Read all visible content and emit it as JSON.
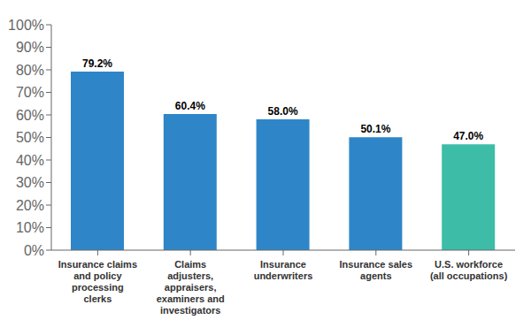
{
  "chart_data": {
    "type": "bar",
    "categories": [
      "Insurance claims\nand policy\nprocessing\nclerks",
      "Claims\nadjusters,\nappraisers,\nexaminers and\ninvestigators",
      "Insurance\nunderwriters",
      "Insurance sales\nagents",
      "U.S. workforce\n(all occupations)"
    ],
    "values": [
      79.2,
      60.4,
      58.0,
      50.1,
      47.0
    ],
    "value_labels": [
      "79.2%",
      "60.4%",
      "58.0%",
      "50.1%",
      "47.0%"
    ],
    "colors": [
      "#2e86c8",
      "#2e86c8",
      "#2e86c8",
      "#2e86c8",
      "#3dbda7"
    ],
    "data_labels": true,
    "ylim": [
      0,
      100
    ],
    "yticks": [
      {
        "value": 0,
        "label": "0%"
      },
      {
        "value": 10,
        "label": "10%"
      },
      {
        "value": 20,
        "label": "20%"
      },
      {
        "value": 30,
        "label": "30%"
      },
      {
        "value": 40,
        "label": "40%"
      },
      {
        "value": 50,
        "label": "50%"
      },
      {
        "value": 60,
        "label": "60%"
      },
      {
        "value": 70,
        "label": "70%"
      },
      {
        "value": 80,
        "label": "80%"
      },
      {
        "value": 90,
        "label": "90%"
      },
      {
        "value": 100,
        "label": "100%"
      }
    ],
    "grid": false
  }
}
